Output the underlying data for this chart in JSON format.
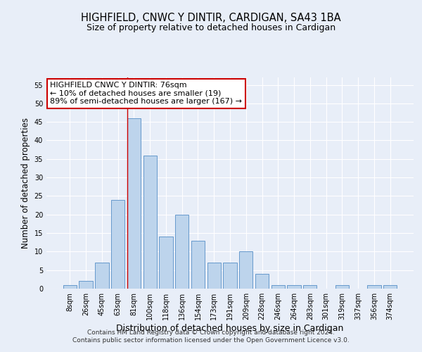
{
  "title": "HIGHFIELD, CNWC Y DINTIR, CARDIGAN, SA43 1BA",
  "subtitle": "Size of property relative to detached houses in Cardigan",
  "xlabel": "Distribution of detached houses by size in Cardigan",
  "ylabel": "Number of detached properties",
  "footer_line1": "Contains HM Land Registry data © Crown copyright and database right 2024.",
  "footer_line2": "Contains public sector information licensed under the Open Government Licence v3.0.",
  "bar_labels": [
    "8sqm",
    "26sqm",
    "45sqm",
    "63sqm",
    "81sqm",
    "100sqm",
    "118sqm",
    "136sqm",
    "154sqm",
    "173sqm",
    "191sqm",
    "209sqm",
    "228sqm",
    "246sqm",
    "264sqm",
    "283sqm",
    "301sqm",
    "319sqm",
    "337sqm",
    "356sqm",
    "374sqm"
  ],
  "bar_values": [
    1,
    2,
    7,
    24,
    46,
    36,
    14,
    20,
    13,
    7,
    7,
    10,
    4,
    1,
    1,
    1,
    0,
    1,
    0,
    1,
    1
  ],
  "bar_color": "#bdd4ec",
  "bar_edgecolor": "#6699cc",
  "ylim": [
    0,
    57
  ],
  "yticks": [
    0,
    5,
    10,
    15,
    20,
    25,
    30,
    35,
    40,
    45,
    50,
    55
  ],
  "property_line_bin_index": 4,
  "annotation_text": "HIGHFIELD CNWC Y DINTIR: 76sqm\n← 10% of detached houses are smaller (19)\n89% of semi-detached houses are larger (167) →",
  "annotation_box_facecolor": "#ffffff",
  "annotation_box_edgecolor": "#cc0000",
  "red_line_color": "#cc0000",
  "background_color": "#e8eef8",
  "grid_color": "#ffffff",
  "title_fontsize": 10.5,
  "subtitle_fontsize": 9,
  "ylabel_fontsize": 8.5,
  "xlabel_fontsize": 9,
  "tick_fontsize": 7,
  "annotation_fontsize": 8,
  "footer_fontsize": 6.5
}
